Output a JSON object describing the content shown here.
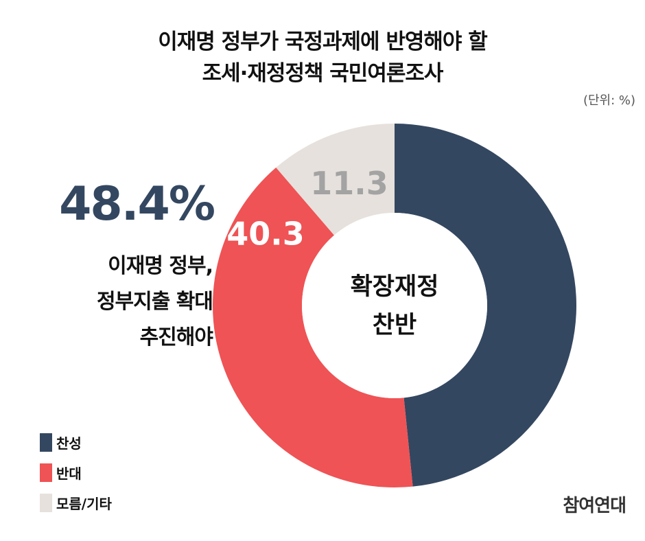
{
  "chart_data": {
    "type": "pie",
    "title_lines": [
      "이재명 정부가 국정과제에 반영해야 할",
      "조세·재정정책 국민여론조사"
    ],
    "unit_label": "(단위: %)",
    "center_label_lines": [
      "확장재정",
      "찬반"
    ],
    "categories": [
      "찬성",
      "반대",
      "모름/기타"
    ],
    "values": [
      48.4,
      40.3,
      11.3
    ],
    "value_labels": [
      "",
      "40.3",
      "11.3"
    ],
    "colors": [
      "#344760",
      "#ef5355",
      "#e6e1dc"
    ],
    "label_colors": [
      "#ffffff",
      "#ffffff",
      "#a3a3a3"
    ],
    "callout": {
      "value": "48.4%",
      "lines": [
        "이재명 정부,",
        "정부지출 확대",
        "추진해야"
      ]
    },
    "legend_position": "bottom-left"
  },
  "source": "참여연대"
}
